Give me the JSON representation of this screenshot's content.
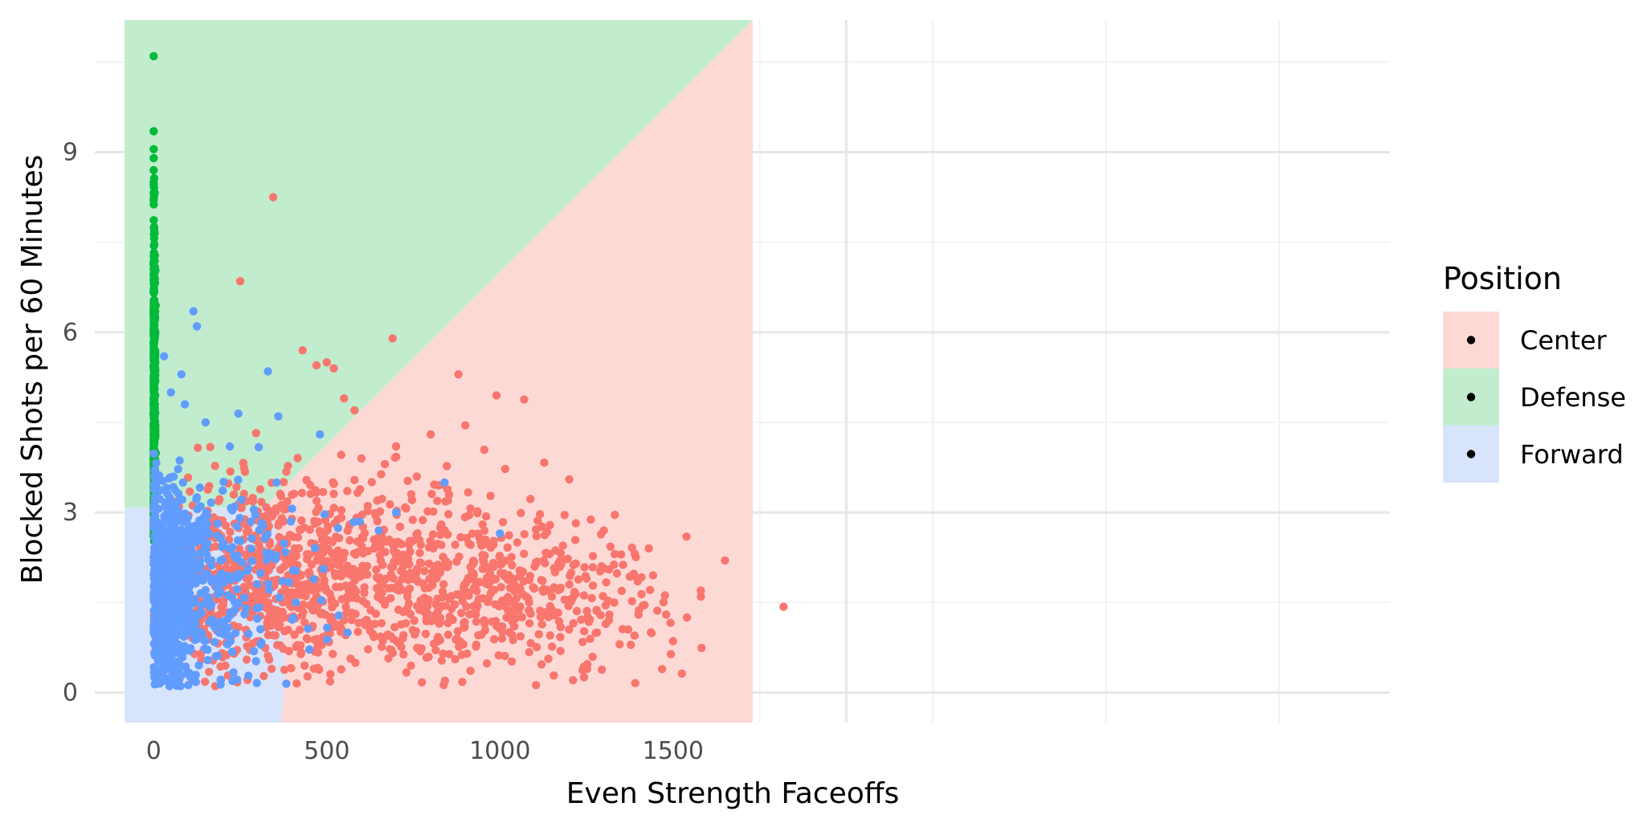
{
  "chart_data": {
    "type": "scatter",
    "xlabel": "Even Strength Faceoffs",
    "ylabel": "Blocked Shots per 60 Minutes",
    "xlim": [
      -170,
      3570
    ],
    "ylim": [
      -0.5,
      11.2
    ],
    "x_ticks": [
      {
        "value": 0,
        "label": "0"
      },
      {
        "value": 500,
        "label": "500"
      },
      {
        "value": 1000,
        "label": "1000"
      },
      {
        "value": 1500,
        "label": "1500"
      }
    ],
    "y_ticks": [
      {
        "value": 0,
        "label": "0"
      },
      {
        "value": 3,
        "label": "3"
      },
      {
        "value": 6,
        "label": "6"
      },
      {
        "value": 9,
        "label": "9"
      }
    ],
    "grid": true,
    "legend": {
      "title": "Position",
      "placement": "right",
      "entries": [
        {
          "label": "Center",
          "point_color": "#000000",
          "key_fill": "#fdd9d6"
        },
        {
          "label": "Defense",
          "point_color": "#000000",
          "key_fill": "#c1edce"
        },
        {
          "label": "Forward",
          "point_color": "#000000",
          "key_fill": "#d8e4fb"
        }
      ]
    },
    "regions": [
      {
        "name": "Forward region",
        "color": "#d8e4fb",
        "polygon": [
          [
            -84,
            -0.5
          ],
          [
            -84,
            3.08
          ],
          [
            320,
            3.08
          ],
          [
            355,
            2.75
          ],
          [
            380,
            0.5
          ],
          [
            370,
            -0.5
          ]
        ]
      },
      {
        "name": "Center region",
        "color": "#fdd9d6",
        "polygon": [
          [
            370,
            -0.5
          ],
          [
            380,
            0.5
          ],
          [
            355,
            2.75
          ],
          [
            320,
            3.08
          ],
          [
            355,
            3.3
          ],
          [
            1730,
            11.2
          ],
          [
            1730,
            -0.5
          ]
        ]
      },
      {
        "name": "Defense region",
        "color": "#c1edce",
        "polygon": [
          [
            -84,
            3.08
          ],
          [
            -84,
            11.2
          ],
          [
            1730,
            11.2
          ],
          [
            355,
            3.3
          ],
          [
            320,
            3.08
          ]
        ]
      }
    ],
    "series": [
      {
        "name": "Center",
        "color": "#f8766d",
        "points": [
          [
            345,
            8.25
          ],
          [
            250,
            6.85
          ],
          [
            690,
            5.9
          ],
          [
            880,
            5.3
          ],
          [
            990,
            4.95
          ],
          [
            1070,
            4.88
          ],
          [
            500,
            5.5
          ],
          [
            470,
            5.45
          ],
          [
            520,
            5.4
          ],
          [
            430,
            5.7
          ],
          [
            550,
            4.9
          ],
          [
            580,
            4.7
          ],
          [
            1200,
            3.55
          ],
          [
            1650,
            2.2
          ],
          [
            1580,
            1.7
          ],
          [
            1540,
            1.25
          ],
          [
            1480,
            1.3
          ],
          [
            1430,
            2.4
          ],
          [
            1400,
            1.3
          ],
          [
            1370,
            1.05
          ],
          [
            1300,
            2.7
          ],
          [
            600,
            3.9
          ],
          [
            700,
            4.1
          ],
          [
            800,
            4.3
          ],
          [
            900,
            4.45
          ],
          [
            760,
            3.6
          ],
          [
            850,
            3.2
          ],
          [
            950,
            2.8
          ],
          [
            1050,
            2.5
          ],
          [
            1100,
            2.1
          ],
          [
            1150,
            1.6
          ],
          [
            1250,
            1.9
          ],
          [
            1280,
            1.0
          ],
          [
            1330,
            1.5
          ],
          [
            1350,
            2.3
          ]
        ],
        "clusters": [
          {
            "cx": 700,
            "cy": 1.9,
            "sx": 280,
            "sy": 0.75,
            "n": 700
          },
          {
            "cx": 330,
            "cy": 2.0,
            "sx": 150,
            "sy": 0.8,
            "n": 380
          },
          {
            "cx": 1150,
            "cy": 1.5,
            "sx": 170,
            "sy": 0.65,
            "n": 180
          },
          {
            "cx": 130,
            "cy": 1.8,
            "sx": 80,
            "sy": 0.75,
            "n": 120
          }
        ]
      },
      {
        "name": "Defense",
        "color": "#00ba38",
        "points": [
          [
            0,
            10.6
          ],
          [
            0,
            9.35
          ],
          [
            0,
            9.05
          ],
          [
            0,
            8.9
          ],
          [
            0,
            8.7
          ],
          [
            0,
            8.5
          ],
          [
            0,
            8.2
          ]
        ],
        "clusters": [
          {
            "cx": 1,
            "cy": 5.0,
            "sx": 2,
            "sy": 1.4,
            "n": 450
          }
        ]
      },
      {
        "name": "Forward",
        "color": "#619cff",
        "points": [
          [
            115,
            6.35
          ],
          [
            125,
            6.1
          ],
          [
            330,
            5.35
          ],
          [
            80,
            5.3
          ],
          [
            30,
            5.6
          ],
          [
            50,
            5.0
          ],
          [
            90,
            4.8
          ],
          [
            150,
            4.5
          ],
          [
            220,
            4.1
          ],
          [
            360,
            4.6
          ],
          [
            480,
            4.3
          ],
          [
            1000,
            2.65
          ],
          [
            840,
            3.5
          ],
          [
            700,
            3.0
          ],
          [
            560,
            1.0
          ],
          [
            650,
            2.7
          ]
        ],
        "clusters": [
          {
            "cx": 35,
            "cy": 1.7,
            "sx": 35,
            "sy": 0.8,
            "n": 650
          },
          {
            "cx": 140,
            "cy": 1.8,
            "sx": 90,
            "sy": 0.85,
            "n": 260
          },
          {
            "cx": 320,
            "cy": 1.8,
            "sx": 120,
            "sy": 0.8,
            "n": 60
          }
        ]
      }
    ]
  }
}
